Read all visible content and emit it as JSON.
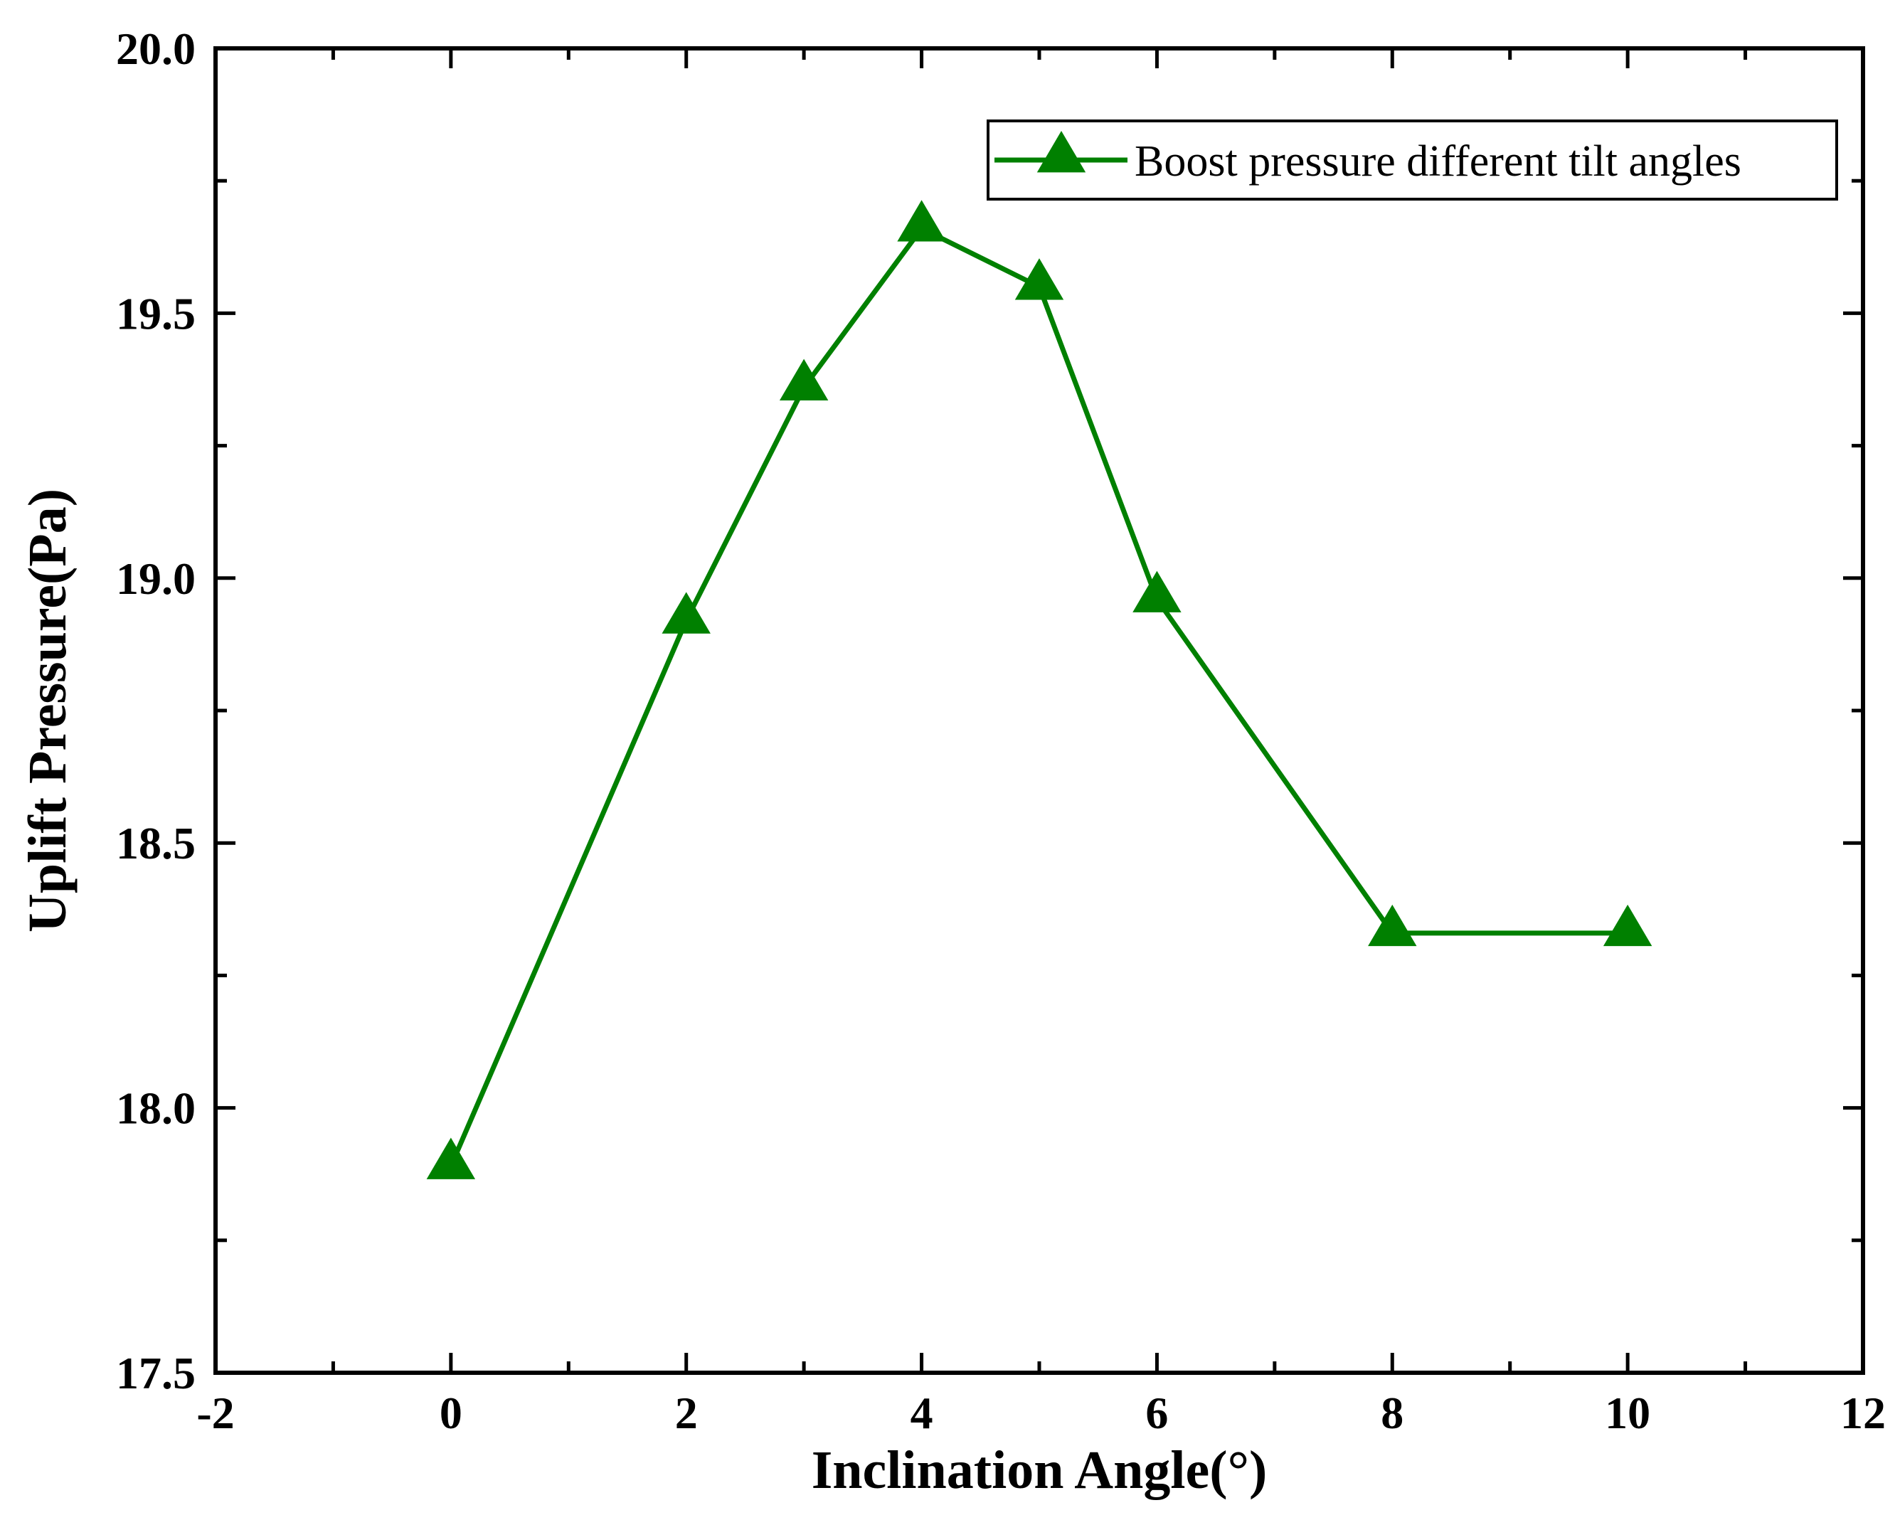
{
  "chart_data": {
    "type": "line",
    "title": "",
    "xlabel": "Inclination Angle(°)",
    "ylabel": "Uplift Pressure(Pa)",
    "xlim": [
      -2,
      12
    ],
    "ylim": [
      17.5,
      20.0
    ],
    "x_major_ticks": [
      -2,
      0,
      2,
      4,
      6,
      8,
      10,
      12
    ],
    "x_tick_labels": [
      "-2",
      "0",
      "2",
      "4",
      "6",
      "8",
      "10",
      "12"
    ],
    "y_major_ticks": [
      17.5,
      18.0,
      18.5,
      19.0,
      19.5,
      20.0
    ],
    "y_tick_labels": [
      "17.5",
      "18.0",
      "18.5",
      "19.0",
      "19.5",
      "20.0"
    ],
    "grid": false,
    "legend_position": "top-right",
    "series": [
      {
        "name": "Boost pressure different tilt angles",
        "color": "#008000",
        "marker": "triangle",
        "x": [
          0,
          2,
          3,
          4,
          5,
          6,
          8,
          10
        ],
        "y": [
          17.89,
          18.92,
          19.36,
          19.66,
          19.55,
          18.96,
          18.33,
          18.33
        ]
      }
    ]
  }
}
